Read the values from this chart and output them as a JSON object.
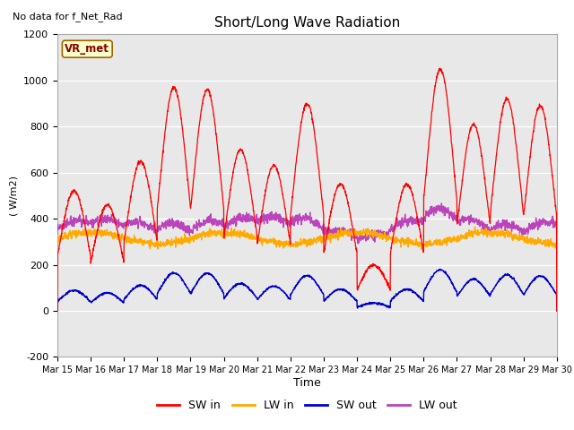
{
  "title": "Short/Long Wave Radiation",
  "subtitle": "No data for f_Net_Rad",
  "ylabel": "( W/m2)",
  "xlabel": "Time",
  "ylim": [
    -200,
    1200
  ],
  "yticks": [
    -200,
    0,
    200,
    400,
    600,
    800,
    1000,
    1200
  ],
  "fig_bg": "#ffffff",
  "plot_bg": "#e8e8e8",
  "legend_label": "VR_met",
  "legend_box_facecolor": "#ffffcc",
  "legend_box_edgecolor": "#996600",
  "legend_text_color": "#880000",
  "colors": {
    "SW_in": "#ff0000",
    "LW_in": "#ffaa00",
    "SW_out": "#0000cc",
    "LW_out": "#bb44bb"
  },
  "xtick_labels": [
    "Mar 15",
    "Mar 16",
    "Mar 17",
    "Mar 18",
    "Mar 19",
    "Mar 20",
    "Mar 21",
    "Mar 22",
    "Mar 23",
    "Mar 24",
    "Mar 25",
    "Mar 26",
    "Mar 27",
    "Mar 28",
    "Mar 29",
    "Mar 30"
  ],
  "n_days": 15,
  "pts_per_day": 144
}
